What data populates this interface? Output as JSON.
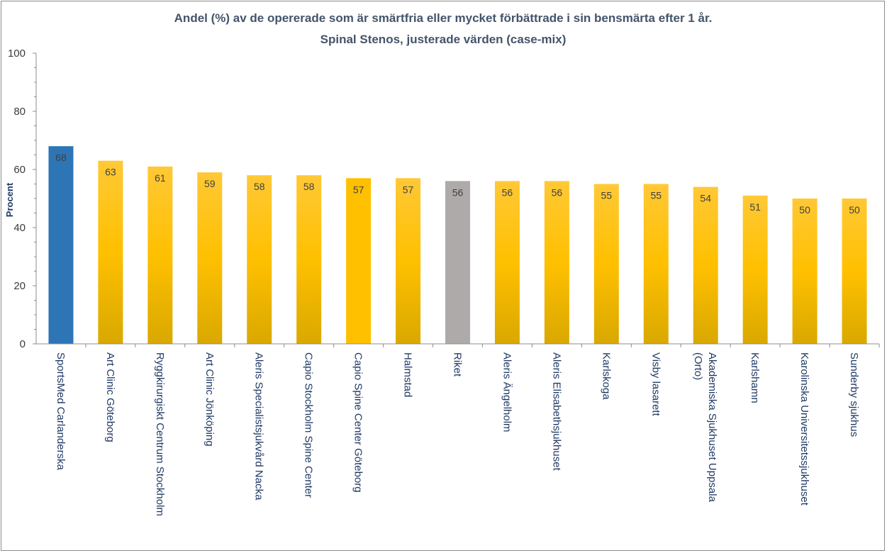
{
  "chart_data": {
    "type": "bar",
    "title_line1": "Andel (%) av de opererade som är smärtfria eller mycket förbättrade i sin bensmärta efter 1 år.",
    "title_line2": "Spinal Stenos, justerade värden (case-mix)",
    "xlabel": "",
    "ylabel": "Procent",
    "ylim": [
      0,
      100
    ],
    "yticks": [
      0,
      20,
      40,
      60,
      80,
      100
    ],
    "grid": false,
    "legend": "none",
    "categories": [
      [
        "SportsMed Carlanderska"
      ],
      [
        "Art Clinic Göteborg"
      ],
      [
        "Ryggkirurgiskt Centrum Stockholm"
      ],
      [
        "Art Clinic Jönköping"
      ],
      [
        "Aleris Specialistsjukvård Nacka"
      ],
      [
        "Capio Stockholm Spine Center"
      ],
      [
        "Capio Spine Center Göteborg"
      ],
      [
        "Halmstad"
      ],
      [
        "Riket"
      ],
      [
        "Aleris Ängelholm"
      ],
      [
        "Aleris Elisabethsjukhuset"
      ],
      [
        "Karlskoga"
      ],
      [
        "Visby lasarett"
      ],
      [
        "Akademiska Sjukhuset Uppsala",
        "(Orto)"
      ],
      [
        "Karlshamn"
      ],
      [
        "Karolinska Universitetssjukhuset"
      ],
      [
        "Sunderby sjukhus"
      ]
    ],
    "values": [
      68,
      63,
      61,
      59,
      58,
      58,
      57,
      57,
      56,
      56,
      56,
      55,
      55,
      54,
      51,
      50,
      50
    ],
    "value_labels": [
      "68",
      "63",
      "61",
      "59",
      "58",
      "58",
      "57",
      "57",
      "56",
      "56",
      "56",
      "55",
      "55",
      "54",
      "51",
      "50",
      "50"
    ],
    "bar_styles": [
      "highlight",
      "gradient",
      "gradient",
      "gradient",
      "gradient",
      "gradient",
      "solid",
      "gradient",
      "national",
      "gradient",
      "gradient",
      "gradient",
      "gradient",
      "gradient",
      "gradient",
      "gradient",
      "gradient"
    ],
    "colors": {
      "highlight": "#2e75b6",
      "gradient_top": "#ffc836",
      "gradient_mid": "#ffc000",
      "gradient_bottom": "#d9a800",
      "solid": "#ffc000",
      "national": "#aeaaaa",
      "highlight_label": "#ffffff",
      "axis": "#8c8c8c"
    }
  }
}
